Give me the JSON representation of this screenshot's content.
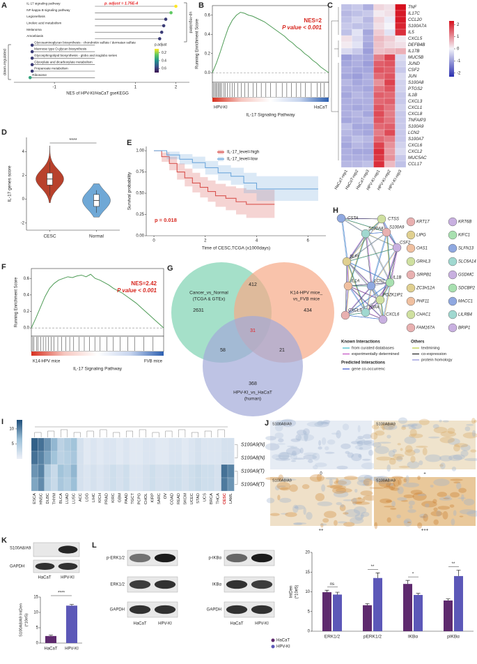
{
  "panels": {
    "A": {
      "label": "A",
      "pathways": [
        "IL-17 signaling pathway",
        "NF-kappa B signaling pathway",
        "Legionellosis",
        "Linoleic acid metabolism",
        "Melanoma",
        "Amoebiasis",
        "Glycosaminoglycan biosynthesis - chondroitin sulfate / dermatan sulfate",
        "Mannose type O-glycan biosynthesis",
        "Glycosphingolipid biosynthesis - globo and isoglobo series",
        "Glyoxylate and dicarboxylate metabolism",
        "Propanoate metabolism",
        "Ribosome"
      ],
      "nes": [
        2.0,
        1.88,
        1.75,
        1.7,
        1.65,
        1.6,
        -1.55,
        -1.55,
        -1.55,
        -1.55,
        -1.55,
        -1.6
      ],
      "p_adjust": [
        0.0002,
        0.25,
        0.6,
        0.6,
        0.6,
        0.6,
        0.6,
        0.6,
        0.6,
        0.6,
        0.6,
        0.35
      ],
      "annotation": "p. adjust = 1.75E-4",
      "x_label": "NES of HPV-KI/HaCaT gseKEGG",
      "xlim": [
        -2,
        2.3
      ],
      "xticks": [
        -1,
        1,
        2
      ],
      "up_label": "up-regulated",
      "down_label": "down-regulated",
      "legend_title": "p.adjust",
      "legend_ticks": [
        0.2,
        0.4,
        0.6
      ],
      "clim": [
        0.1,
        0.7
      ],
      "colormap": [
        "#fde725",
        "#5ec962",
        "#21918c",
        "#3b528b",
        "#3b0f4f"
      ],
      "annotation_color": "#e41a1c"
    },
    "B": {
      "label": "B",
      "y_label": "Running Enrichment Score",
      "values": [
        0,
        0.1,
        0.22,
        0.35,
        0.47,
        0.55,
        0.6,
        0.63,
        0.62,
        0.6,
        0.59,
        0.57,
        0.55,
        0.53,
        0.5,
        0.47,
        0.44,
        0.41,
        0.38,
        0.34,
        0.31,
        0.27,
        0.24,
        0.2,
        0.17,
        0.13,
        0.1,
        0.06,
        0.03,
        0
      ],
      "hits": [
        0.01,
        0.02,
        0.03,
        0.04,
        0.05,
        0.06,
        0.07,
        0.08,
        0.1,
        0.11,
        0.13,
        0.15,
        0.17,
        0.19,
        0.22,
        0.25,
        0.28,
        0.31,
        0.35,
        0.38,
        0.42,
        0.46,
        0.5,
        0.55,
        0.6,
        0.64,
        0.68,
        0.72,
        0.76,
        0.8,
        0.85,
        0.9,
        0.93,
        0.96
      ],
      "ylim": [
        -0.1,
        0.7
      ],
      "yticks": [
        {
          "value": 0,
          "label": "0.0"
        },
        0.2,
        0.4,
        0.6
      ],
      "nes": "NES=2",
      "p_value": "P value < 0.001",
      "left_label": "HPV-KI",
      "right_label": "HaCaT",
      "title": "IL-17 Signaling Pathway",
      "line_color": "#4d9b55"
    },
    "C": {
      "label": "C",
      "genes": [
        "TNF",
        "IL17C",
        "CCL20",
        "S100A7A",
        "IL5",
        "CXCL5",
        "DEFB4B",
        "IL17B",
        "MUC5B",
        "JUND",
        "CSF2",
        "JUN",
        "S100A8",
        "PTGS2",
        "IL1B",
        "CXCL3",
        "CXCL1",
        "CXCL8",
        "TNFAIP3",
        "S100A9",
        "LCN2",
        "S100A7",
        "CXCL6",
        "CXCL2",
        "MUC5AC",
        "CCL17"
      ],
      "samples": [
        "HaCaT-rep1",
        "HaCaT-rep2",
        "HaCaT-rep3",
        "HPV-KI-rep1",
        "HPV-KI-rep2",
        "HPV-KI-rep3"
      ],
      "values": [
        [
          -0.6,
          -0.5,
          -0.8,
          0.3,
          0.2,
          2.3
        ],
        [
          -0.7,
          -0.6,
          -0.5,
          0.1,
          0.2,
          2.2
        ],
        [
          -0.6,
          -0.4,
          -0.7,
          0.3,
          -0.1,
          2.2
        ],
        [
          -0.5,
          -0.6,
          -0.6,
          0.2,
          0.0,
          2.1
        ],
        [
          -0.6,
          -0.2,
          -0.9,
          0.4,
          -0.2,
          2.0
        ],
        [
          0.2,
          -0.3,
          -0.8,
          0.6,
          0.4,
          0.1
        ],
        [
          0.1,
          -0.2,
          -0.9,
          0.5,
          0.3,
          0.2
        ],
        [
          -0.3,
          -0.5,
          -1.0,
          0.5,
          0.6,
          0.7
        ],
        [
          -1.0,
          -0.8,
          -0.9,
          1.2,
          1.8,
          -0.3
        ],
        [
          -0.9,
          -0.8,
          -1.0,
          1.5,
          1.6,
          -0.4
        ],
        [
          -0.8,
          -0.9,
          -0.9,
          1.6,
          1.5,
          -0.5
        ],
        [
          -0.9,
          -1.0,
          -0.8,
          1.4,
          1.6,
          -0.3
        ],
        [
          -0.7,
          -0.9,
          -0.8,
          1.0,
          1.8,
          -0.4
        ],
        [
          -0.8,
          -0.8,
          -0.9,
          1.3,
          1.6,
          -0.4
        ],
        [
          -0.9,
          -0.7,
          -0.8,
          1.5,
          1.4,
          -0.5
        ],
        [
          -0.8,
          -0.8,
          -0.8,
          1.4,
          1.5,
          -0.5
        ],
        [
          -0.8,
          -0.9,
          -0.8,
          1.6,
          1.3,
          -0.4
        ],
        [
          -0.8,
          -0.7,
          -0.9,
          1.7,
          1.2,
          -0.5
        ],
        [
          -0.9,
          -0.8,
          -0.7,
          1.6,
          1.3,
          -0.5
        ],
        [
          -0.6,
          -0.9,
          -0.9,
          1.4,
          1.5,
          -0.5
        ],
        [
          -0.7,
          -0.8,
          -0.9,
          1.2,
          1.7,
          -0.5
        ],
        [
          -0.8,
          -0.6,
          -0.7,
          1.4,
          1.2,
          -0.5
        ],
        [
          -0.9,
          -0.7,
          -0.8,
          1.8,
          1.0,
          -0.4
        ],
        [
          -0.8,
          -0.9,
          -0.9,
          2.0,
          0.9,
          -0.3
        ],
        [
          -0.8,
          -0.8,
          -0.8,
          1.9,
          1.0,
          -0.5
        ],
        [
          -0.7,
          -0.7,
          -0.6,
          2.0,
          0.6,
          -0.6
        ]
      ],
      "clim": [
        -2.3,
        2.3
      ],
      "scale_ticks": [
        2,
        1,
        0,
        -1,
        -2
      ],
      "colormap": [
        "#2a2fb0",
        "#f4f4fa",
        "#d6101e"
      ]
    },
    "D": {
      "label": "D",
      "y_label": "IL-17 genes score",
      "categories": [
        "CESC",
        "Normal"
      ],
      "colors": [
        "#b8412c",
        "#6fa8d6"
      ],
      "min": [
        -0.3,
        -1.5
      ],
      "q1": [
        1.2,
        -0.6
      ],
      "median": [
        1.7,
        -0.1
      ],
      "q3": [
        2.2,
        0.4
      ],
      "max": [
        4.5,
        1.3
      ],
      "ylim": [
        -2.6,
        5.2
      ],
      "yticks": [
        -2,
        0,
        2,
        4
      ],
      "significance": "****"
    },
    "E": {
      "label": "E",
      "y_label": "Survival probability",
      "x_label": "Time of CESC,TCGA (x1000days)",
      "p_value": "p = 0.018",
      "xlim": [
        -0.3,
        6.7
      ],
      "ylim": [
        0,
        1.05
      ],
      "xticks": [
        0,
        2,
        4,
        6
      ],
      "yticks": [
        {
          "value": 0,
          "label": "0.00"
        },
        {
          "value": 0.25,
          "label": "0.25"
        },
        {
          "value": 0.5,
          "label": "0.50"
        },
        {
          "value": 0.75,
          "label": "0.75"
        },
        {
          "value": 1,
          "label": "1.00"
        }
      ],
      "series": [
        {
          "name": "IL-17_level=high",
          "color": "#d9534f",
          "x": [
            0,
            0.3,
            0.6,
            0.9,
            1.2,
            1.5,
            1.8,
            2.1,
            2.4,
            2.8,
            3.2,
            3.6,
            4.0,
            4.7
          ],
          "values": [
            1,
            0.93,
            0.85,
            0.75,
            0.68,
            0.62,
            0.57,
            0.52,
            0.47,
            0.44,
            0.4,
            0.37,
            0.37,
            0.37
          ],
          "lower": [
            1,
            0.87,
            0.77,
            0.66,
            0.58,
            0.51,
            0.45,
            0.4,
            0.34,
            0.3,
            0.25,
            0.21,
            0.21,
            0.21
          ],
          "upper": [
            1,
            0.98,
            0.93,
            0.85,
            0.79,
            0.74,
            0.69,
            0.65,
            0.61,
            0.58,
            0.56,
            0.54,
            0.54,
            0.54
          ]
        },
        {
          "name": "IL-17_level=low",
          "color": "#6fa8dc",
          "x": [
            0,
            0.5,
            1,
            1.5,
            2,
            2.5,
            3,
            3.5,
            4,
            5,
            6.4
          ],
          "values": [
            1,
            0.95,
            0.9,
            0.86,
            0.8,
            0.74,
            0.7,
            0.62,
            0.55,
            0.55,
            0.55
          ],
          "lower": [
            1,
            0.9,
            0.84,
            0.79,
            0.72,
            0.65,
            0.6,
            0.5,
            0.41,
            0.41,
            0.41
          ],
          "upper": [
            1,
            0.99,
            0.96,
            0.93,
            0.88,
            0.83,
            0.8,
            0.74,
            0.7,
            0.7,
            0.7
          ]
        }
      ]
    },
    "F": {
      "label": "F",
      "y_label": "Running Enrichment Score",
      "values": [
        0,
        0.12,
        0.25,
        0.38,
        0.48,
        0.54,
        0.58,
        0.6,
        0.62,
        0.61,
        0.63,
        0.64,
        0.62,
        0.65,
        0.6,
        0.58,
        0.55,
        0.52,
        0.48,
        0.45,
        0.42,
        0.38,
        0.34,
        0.3,
        0.25,
        0.2,
        0.15,
        0.1,
        0.05,
        0
      ],
      "hits": [
        0.01,
        0.02,
        0.04,
        0.05,
        0.07,
        0.09,
        0.11,
        0.13,
        0.15,
        0.17,
        0.2,
        0.23,
        0.26,
        0.29,
        0.32,
        0.36,
        0.4,
        0.44,
        0.48,
        0.52,
        0.57,
        0.62,
        0.67,
        0.73,
        0.78,
        0.85,
        0.92
      ],
      "ylim": [
        -0.1,
        0.72
      ],
      "yticks": [
        {
          "value": 0,
          "label": "0.0"
        },
        0.2,
        0.4,
        0.6
      ],
      "nes": "NES=2.42",
      "p_value": "P value < 0.001",
      "left_label": "K14-HPV mice",
      "right_label": "FVB mice",
      "title": "IL-17 Signaling Pathway",
      "line_color": "#4d9b55"
    },
    "G": {
      "label": "G",
      "sets": [
        [
          "Cancer_vs_Normal",
          "(TCGA & GTEx)"
        ],
        [
          "K14-HPV mice_",
          "vs_FVB mice"
        ],
        [
          "HPV-KI_vs_HaCaT",
          "(human)"
        ]
      ],
      "set_colors": [
        "#7fd3b2",
        "#f6a987",
        "#a3aad8"
      ],
      "counts": [
        2631,
        412,
        434,
        31,
        58,
        21,
        368
      ],
      "highlight_color": "#e41a1c"
    },
    "H": {
      "label": "H",
      "hub_genes": [
        "CSTA",
        "CTSS",
        "S100A8",
        "S100A9",
        "CSF2",
        "SLPI",
        "IL1B",
        "IL1A",
        "LCN2",
        "PDZK1IP1",
        "TGFA",
        "CXCL3",
        "CXCL6"
      ],
      "other_genes": [
        "KRT17",
        "KRT6B",
        "LIPG",
        "KIFC1",
        "OAS1",
        "SLFN13",
        "GRHL3",
        "SLC6A14",
        "SIRPB1",
        "GSDMC",
        "ZC3H12A",
        "SDCBP2",
        "PHF11",
        "MACC1",
        "CHAC1",
        "LILRB4",
        "FAM167A",
        "BRIP1"
      ],
      "legend": [
        {
          "title": "Known Interactions",
          "items": [
            {
              "name": "from curated databases",
              "color": "#35b8c4"
            },
            {
              "name": "experimentally determined",
              "color": "#c24fc2"
            }
          ]
        },
        {
          "title": "Predicted Interactions",
          "items": [
            {
              "name": "gene co-occurrenc",
              "color": "#3a55d0"
            }
          ]
        },
        {
          "title": "Others",
          "items": [
            {
              "name": "textmining",
              "color": "#b5c83a"
            },
            {
              "name": "co-expression",
              "color": "#222222"
            },
            {
              "name": "protein homology",
              "color": "#8a8ad6"
            }
          ]
        }
      ]
    },
    "I": {
      "label": "I",
      "cancers": [
        "ESCA",
        "HNSC",
        "DLBC",
        "THYM",
        "BLCA",
        "LUAD",
        "LUSC",
        "ACC",
        "LGG",
        "LIHC",
        "KICH",
        "PRAD",
        "KIRC",
        "GBM",
        "PAAD",
        "TGCT",
        "PCPG",
        "CHOL",
        "KIRP",
        "SARC",
        "OV",
        "COAD",
        "READ",
        "SKCM",
        "UCEC",
        "STAD",
        "UCS",
        "BRCA",
        "THCA",
        "CESC",
        "LAML"
      ],
      "rows": [
        "S100A9(N)",
        "S100A8(N)",
        "S100A9(T)",
        "S100A8(T)"
      ],
      "values": [
        [
          12,
          11,
          9,
          7,
          4,
          5,
          6,
          2,
          1,
          1.5,
          1,
          1.5,
          1.5,
          1,
          1.5,
          1,
          1,
          1.5,
          1.5,
          1,
          1,
          1.5,
          1.5,
          1,
          1.5,
          2,
          1.5,
          1.5,
          1.5,
          2,
          2
        ],
        [
          11,
          10,
          8,
          6,
          4,
          4.5,
          5.5,
          2,
          1,
          1.5,
          1,
          1.5,
          1.5,
          1,
          1.5,
          1,
          1,
          1.5,
          1.5,
          1,
          1,
          1.5,
          1.5,
          1,
          1.5,
          2,
          1.5,
          1.5,
          1.5,
          2,
          2
        ],
        [
          9,
          10,
          5,
          3,
          6,
          5,
          7,
          2,
          1.5,
          2,
          1.5,
          2,
          2.5,
          2,
          2.5,
          1.5,
          1.5,
          2,
          2.5,
          2,
          2,
          2.5,
          2.5,
          2,
          2.5,
          3,
          2.5,
          2.5,
          2,
          11,
          10
        ],
        [
          8,
          9.5,
          4.5,
          3,
          5.5,
          4.5,
          6.5,
          2,
          1.5,
          2,
          1.5,
          2,
          2.5,
          2,
          2.5,
          1.5,
          1.5,
          2,
          2.5,
          2,
          2,
          2.5,
          2.5,
          2,
          2.5,
          3,
          2.5,
          2.5,
          2,
          10.5,
          9
        ]
      ],
      "clim": [
        0,
        13
      ],
      "scale_ticks": [
        10,
        5
      ],
      "colormap": [
        "#eef0f8",
        "#9cc0d8",
        "#1e4e79"
      ],
      "highlight": "CESC",
      "highlight_color": "#d62728"
    },
    "J": {
      "label": "J",
      "image_label": "S100A8/A9",
      "grades": [
        "0",
        "+",
        "++",
        "+++"
      ],
      "y_label": [
        "IntDen",
        "(*10e5)"
      ],
      "categories": [
        "ERK1/2",
        "pERK1/2",
        "IKBα",
        "pIKBα"
      ],
      "series": [
        {
          "name": "HaCaT",
          "color": "#5e2a6e",
          "values": [
            9.9,
            6.6,
            12,
            7.8
          ],
          "errors": [
            0.5,
            0.4,
            0.9,
            0.4
          ]
        },
        {
          "name": "HPV-KI",
          "color": "#5c58b8",
          "values": [
            9.3,
            13.5,
            9.2,
            14
          ],
          "errors": [
            0.6,
            1.3,
            0.4,
            1.5
          ]
        }
      ],
      "significance": [
        "ns",
        "**",
        "*",
        "**"
      ],
      "ylim": [
        0,
        20
      ],
      "yticks": [
        0,
        5,
        10,
        15,
        20
      ]
    },
    "K": {
      "label": "K",
      "blots": [
        "S100A8/A9",
        "GAPDH"
      ],
      "lanes": [
        "HaCaT",
        "HPV-KI"
      ],
      "y_label": [
        "S100A8/A9 IntDen",
        "(*10e5)"
      ],
      "categories": [
        "HaCaT",
        "HPV-KI"
      ],
      "values": [
        2.3,
        12.2
      ],
      "errors": [
        0.3,
        0.4
      ],
      "colors": [
        "#5e2a6e",
        "#5c58b8"
      ],
      "ylim": [
        0,
        15
      ],
      "yticks": [
        0,
        5,
        10,
        15
      ],
      "significance": "****"
    },
    "L": {
      "label": "L",
      "left_blots": [
        "p-ERK1/2",
        "ERK1/2",
        "GAPDH"
      ],
      "right_blots": [
        "p-IKBα",
        "IKBα",
        "GAPDH"
      ],
      "lanes": [
        "HaCaT",
        "HPV-KI"
      ]
    }
  }
}
